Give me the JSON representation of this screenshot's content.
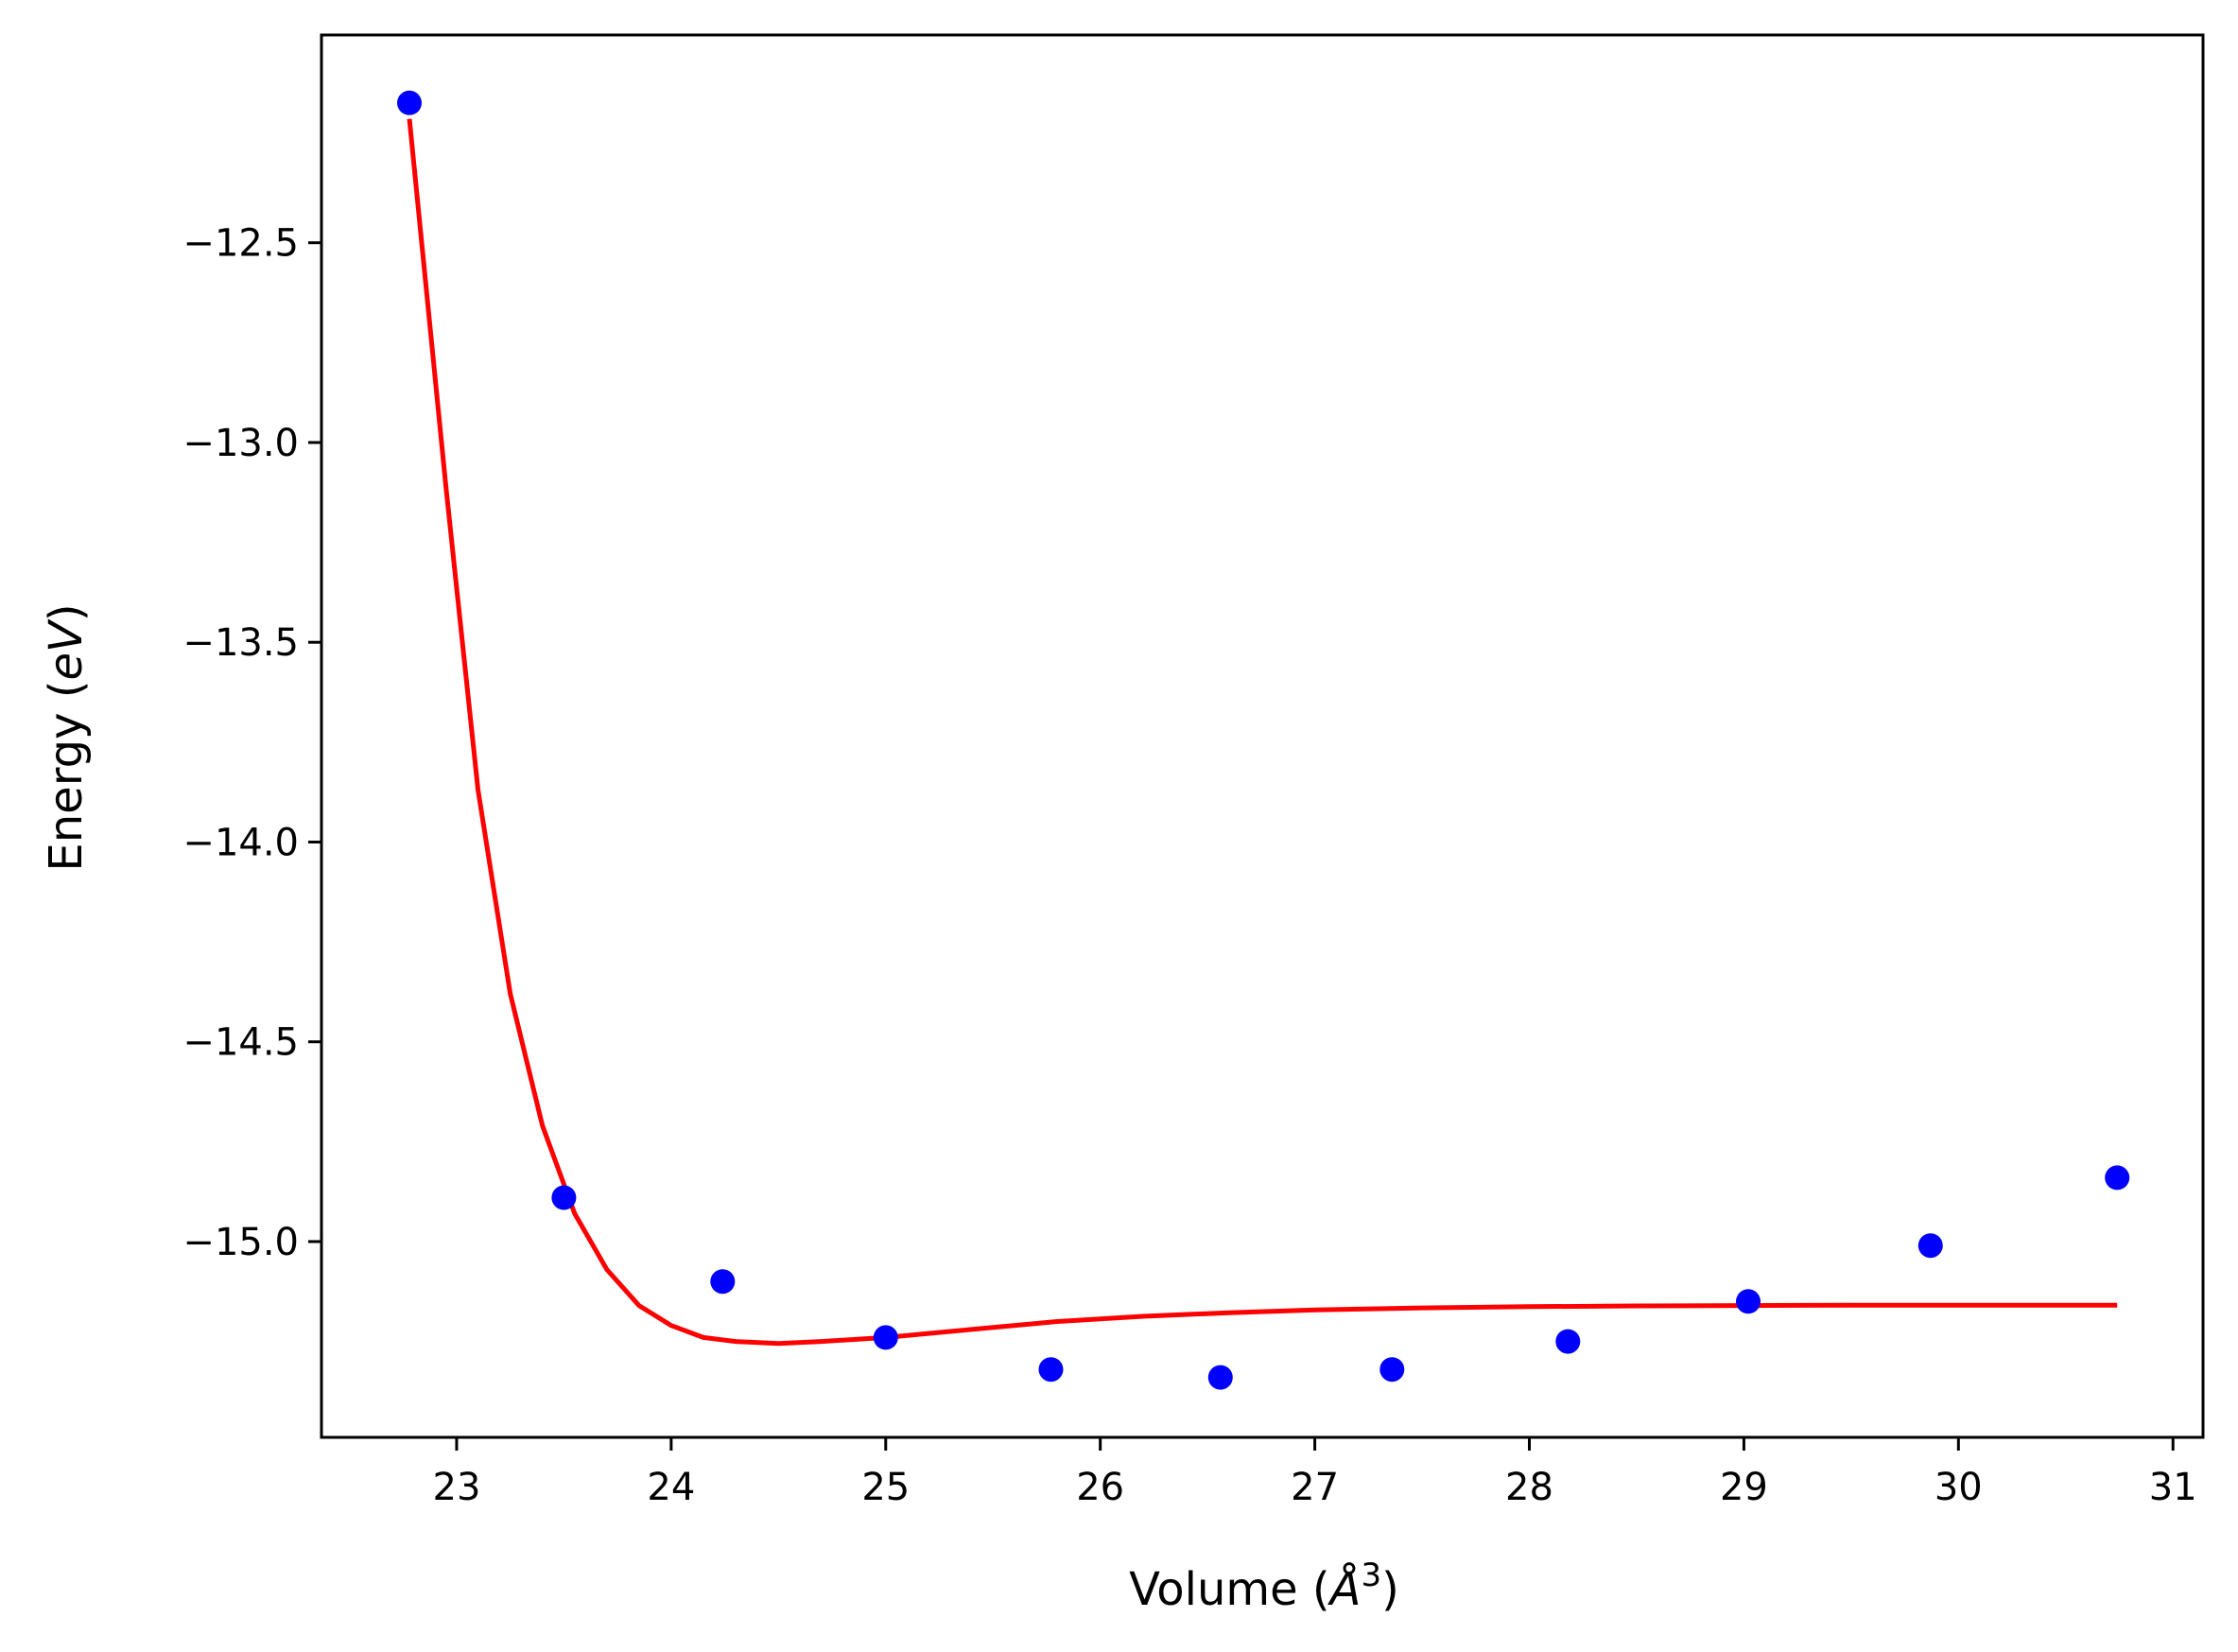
{
  "chart_data": {
    "type": "scatter",
    "title": "",
    "xlabel_text": "Volume (",
    "xlabel_math": "Å",
    "xlabel_sup": "3",
    "xlabel_close": ")",
    "ylabel_text": "Energy (",
    "ylabel_math": "eV",
    "ylabel_close": ")",
    "xlim": [
      22.37,
      31.14
    ],
    "ylim": [
      -15.49,
      -11.98
    ],
    "x_ticks": [
      23,
      24,
      25,
      26,
      27,
      28,
      29,
      30,
      31
    ],
    "y_ticks": [
      -12.5,
      -13.0,
      -13.5,
      -14.0,
      -14.5,
      -15.0
    ],
    "x_tick_labels": [
      "23",
      "24",
      "25",
      "26",
      "27",
      "28",
      "29",
      "30",
      "31"
    ],
    "y_tick_labels": [
      "−12.5",
      "−13.0",
      "−13.5",
      "−14.0",
      "−14.5",
      "−15.0"
    ],
    "grid": false,
    "legend": "none",
    "series": [
      {
        "kind": "points",
        "color": "#0000ff",
        "x": [
          22.78,
          23.5,
          24.24,
          25.0,
          25.77,
          26.56,
          27.36,
          28.18,
          29.02,
          29.87,
          30.74
        ],
        "y": [
          -12.15,
          -14.89,
          -15.1,
          -15.24,
          -15.32,
          -15.34,
          -15.32,
          -15.25,
          -15.15,
          -15.01,
          -14.84
        ]
      },
      {
        "kind": "fit-curve",
        "color": "#ff0000",
        "x": [
          22.78,
          22.95,
          23.1,
          23.25,
          23.4,
          23.55,
          23.7,
          23.85,
          24.0,
          24.15,
          24.3,
          24.5,
          24.7,
          25.0,
          25.4,
          25.8,
          26.2,
          26.6,
          27.0,
          27.5,
          28.0,
          28.5,
          29.0,
          29.5,
          30.0,
          30.4,
          30.74
        ],
        "y": [
          -12.19,
          -13.11,
          -13.87,
          -14.38,
          -14.71,
          -14.93,
          -15.07,
          -15.16,
          -15.21,
          -15.24,
          -15.25,
          -15.255,
          -15.25,
          -15.24,
          -15.22,
          -15.2,
          -15.187,
          -15.178,
          -15.171,
          -15.166,
          -15.163,
          -15.161,
          -15.16,
          -15.159,
          -15.159,
          -15.159,
          -15.159
        ]
      }
    ]
  }
}
